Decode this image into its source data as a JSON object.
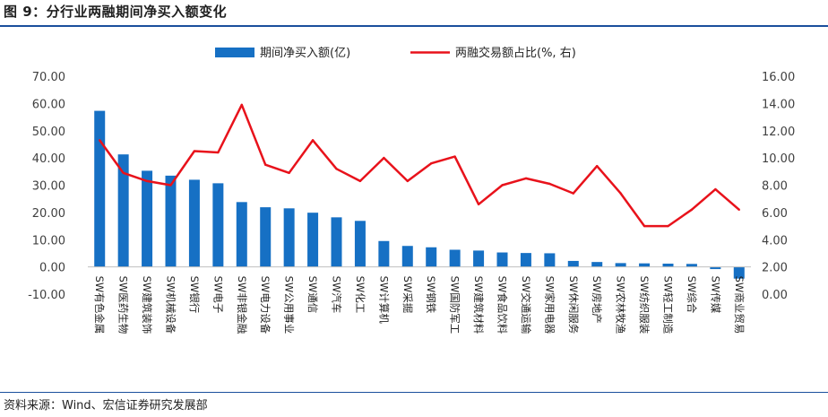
{
  "title": "图 9：分行业两融期间净买入额变化",
  "source": "资料来源：Wind、宏信证券研究发展部",
  "colors": {
    "bar": "#1670c4",
    "line": "#e8121b",
    "accent_rule": "#1a4f9c"
  },
  "chart_data": {
    "type": "bar",
    "categories": [
      "SW有色金属",
      "SW医药生物",
      "SW建筑装饰",
      "SW机械设备",
      "SW银行",
      "SW电子",
      "SW非银金融",
      "SW电力设备",
      "SW公用事业",
      "SW通信",
      "SW汽车",
      "SW化工",
      "SW计算机",
      "SW采掘",
      "SW钢铁",
      "SW国防军工",
      "SW建筑材料",
      "SW食品饮料",
      "SW交通运输",
      "SW家用电器",
      "SW休闲服务",
      "SW房地产",
      "SW农林牧渔",
      "SW纺织服装",
      "SW轻工制造",
      "SW综合",
      "SW传媒",
      "SW商业贸易"
    ],
    "series": [
      {
        "name": "期间净买入额(亿)",
        "type": "bar",
        "axis": "left",
        "values": [
          57.3,
          41.3,
          35.3,
          33.5,
          32.0,
          30.7,
          23.8,
          21.9,
          21.5,
          19.9,
          18.2,
          16.9,
          9.5,
          7.7,
          7.2,
          6.3,
          6.0,
          5.3,
          5.1,
          5.0,
          2.2,
          1.8,
          1.4,
          1.3,
          1.2,
          1.1,
          -0.8,
          -4.3
        ]
      },
      {
        "name": "两融交易额占比(%, 右)",
        "type": "line",
        "axis": "right",
        "values": [
          11.3,
          8.9,
          8.3,
          8.0,
          10.5,
          10.4,
          13.9,
          9.5,
          8.9,
          11.3,
          9.2,
          8.3,
          10.0,
          8.3,
          9.6,
          10.1,
          6.6,
          8.0,
          8.5,
          8.1,
          7.4,
          9.4,
          7.4,
          5.0,
          5.0,
          6.2,
          7.7,
          6.2
        ]
      }
    ],
    "y_left": {
      "min": -10,
      "max": 70,
      "step": 10,
      "ticks": [
        "-10.00",
        "0.00",
        "10.00",
        "20.00",
        "30.00",
        "40.00",
        "50.00",
        "60.00",
        "70.00"
      ]
    },
    "y_right": {
      "min": 0,
      "max": 16,
      "step": 2,
      "ticks": [
        "0.00",
        "2.00",
        "4.00",
        "6.00",
        "8.00",
        "10.00",
        "12.00",
        "14.00",
        "16.00"
      ]
    },
    "legend_position": "top-center",
    "grid": false
  }
}
